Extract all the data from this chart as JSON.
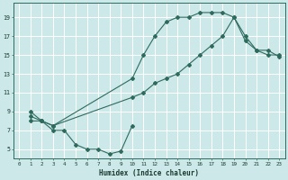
{
  "xlabel": "Humidex (Indice chaleur)",
  "bg_color": "#cce8e8",
  "grid_color": "#ffffff",
  "line_color": "#2e6b5e",
  "xlim": [
    -0.5,
    23.5
  ],
  "ylim": [
    4,
    20.5
  ],
  "xticks": [
    0,
    1,
    2,
    3,
    4,
    5,
    6,
    7,
    8,
    9,
    10,
    11,
    12,
    13,
    14,
    15,
    16,
    17,
    18,
    19,
    20,
    21,
    22,
    23
  ],
  "yticks": [
    5,
    7,
    9,
    11,
    13,
    15,
    17,
    19
  ],
  "curve1_x": [
    1,
    2,
    3,
    4,
    5,
    6,
    7,
    8,
    9,
    10
  ],
  "curve1_y": [
    9.0,
    8.0,
    7.0,
    7.0,
    5.5,
    5.0,
    5.0,
    4.5,
    4.8,
    7.5
  ],
  "curve2_x": [
    1,
    2,
    3,
    10,
    11,
    12,
    13,
    14,
    15,
    16,
    17,
    18,
    19,
    20,
    21,
    22,
    23
  ],
  "curve2_y": [
    8.0,
    8.0,
    7.5,
    10.5,
    11.0,
    12.0,
    12.5,
    13.0,
    14.0,
    15.0,
    16.0,
    17.0,
    19.0,
    17.0,
    15.5,
    15.0,
    15.0
  ],
  "curve3_x": [
    1,
    2,
    3,
    10,
    11,
    12,
    13,
    14,
    15,
    16,
    17,
    18,
    19,
    20,
    21,
    22,
    23
  ],
  "curve3_y": [
    8.5,
    8.0,
    7.5,
    12.5,
    15.0,
    17.0,
    18.5,
    19.0,
    19.0,
    19.5,
    19.5,
    19.5,
    19.0,
    16.5,
    15.5,
    15.5,
    14.8
  ]
}
